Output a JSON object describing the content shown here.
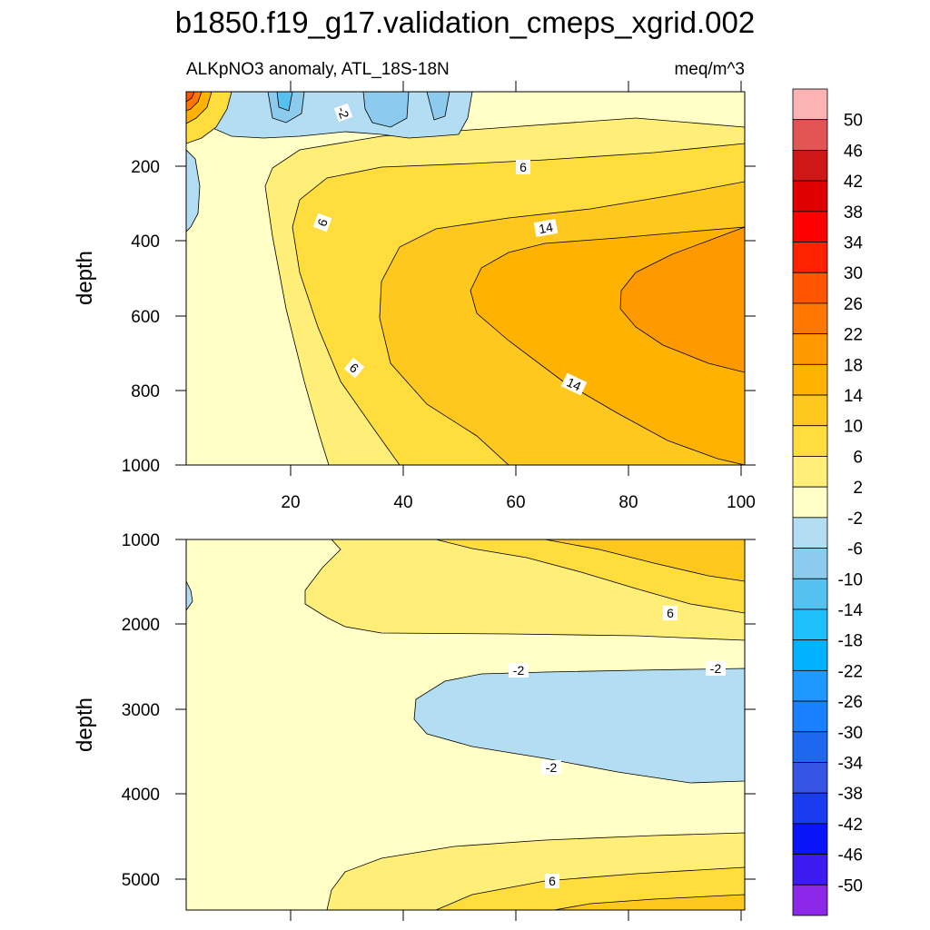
{
  "chart_data": {
    "type": "heatmap",
    "title": "b1850.f19_g17.validation_cmeps_xgrid.002",
    "subtitle_left": "ALKpNO3 anomaly, ATL_18S-18N",
    "subtitle_right": "meq/m^3",
    "ylabel": "depth",
    "xlim": [
      1,
      101
    ],
    "x_ticks": [
      "20",
      "40",
      "60",
      "80",
      "100"
    ],
    "panels": [
      {
        "name": "upper",
        "ylim": [
          0,
          1000
        ],
        "y_ticks": [
          "200",
          "400",
          "600",
          "800",
          "1000"
        ],
        "contour_labels": [
          "-2",
          "6",
          "6",
          "14",
          "6",
          "14"
        ]
      },
      {
        "name": "lower",
        "ylim": [
          1000,
          5400
        ],
        "y_ticks": [
          "1000",
          "2000",
          "3000",
          "4000",
          "5000"
        ],
        "contour_labels": [
          "6",
          "-2",
          "-2",
          "-2",
          "6"
        ]
      }
    ],
    "colorbar": {
      "labels": [
        "50",
        "46",
        "42",
        "38",
        "34",
        "30",
        "26",
        "22",
        "18",
        "14",
        "10",
        "6",
        "2",
        "-2",
        "-6",
        "-10",
        "-14",
        "-18",
        "-22",
        "-26",
        "-30",
        "-34",
        "-38",
        "-42",
        "-46",
        "-50"
      ],
      "colors": [
        "#fbb3b3",
        "#e35555",
        "#cf1717",
        "#df0000",
        "#fe0000",
        "#ff2200",
        "#ff5500",
        "#ff7700",
        "#ff9900",
        "#ffb300",
        "#ffc81e",
        "#ffdd3c",
        "#ffee77",
        "#ffffc6",
        "#b3ddf2",
        "#8dcbee",
        "#55c1f0",
        "#1ec1fb",
        "#00b2ff",
        "#1e99ff",
        "#1a80ff",
        "#1e68f0",
        "#3755e4",
        "#1a3cf0",
        "#0a14f8",
        "#3c1af0",
        "#8c28e8"
      ]
    }
  }
}
